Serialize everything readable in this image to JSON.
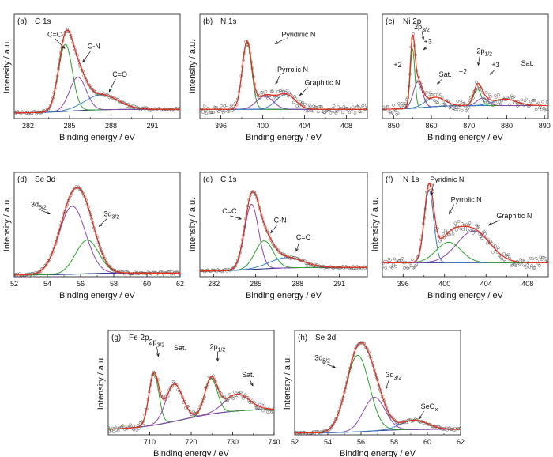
{
  "chart_data": [
    {
      "tag": "(a)",
      "title": "C 1s",
      "type": "line",
      "xlabel": "Binding energy / eV",
      "ylabel": "Intensity / a.u.",
      "xlim": [
        281,
        293
      ],
      "ylim": [
        0,
        1.12
      ],
      "xticks": [
        "282",
        "285",
        "288",
        "291"
      ],
      "xtick_values": [
        282,
        285,
        288,
        291
      ],
      "noise": 0.015,
      "peaks": [
        {
          "center": 284.7,
          "amp": 0.72,
          "width": 0.5,
          "color": "#2ca02c"
        },
        {
          "center": 285.6,
          "amp": 0.36,
          "width": 0.6,
          "color": "#8e44ad"
        },
        {
          "center": 287.3,
          "amp": 0.16,
          "width": 1.2,
          "color": "#3a7fc1"
        }
      ],
      "bg": {
        "type": "step",
        "low": 0.06,
        "high": 0.1,
        "center": 285.0,
        "width": 1.2
      },
      "annotations": [
        {
          "text": "C=C",
          "sub": "",
          "x": 283.4,
          "y": 0.88
        },
        {
          "text": "C-N",
          "sub": "",
          "x": 286.3,
          "y": 0.75
        },
        {
          "text": "C=O",
          "sub": "",
          "x": 288.1,
          "y": 0.45
        }
      ]
    },
    {
      "tag": "(b)",
      "title": "N 1s",
      "type": "line",
      "xlabel": "Binding energy / eV",
      "ylabel": "Intensity / a.u.",
      "xlim": [
        394,
        410
      ],
      "ylim": [
        0,
        1.12
      ],
      "xticks": [
        "396",
        "400",
        "404",
        "408"
      ],
      "xtick_values": [
        396,
        400,
        404,
        408
      ],
      "noise": 0.045,
      "peaks": [
        {
          "center": 398.5,
          "amp": 0.72,
          "width": 0.45,
          "color": "#2ca02c"
        },
        {
          "center": 400.2,
          "amp": 0.14,
          "width": 0.8,
          "color": "#8e44ad"
        },
        {
          "center": 402.2,
          "amp": 0.16,
          "width": 0.9,
          "color": "#3a7fc1"
        }
      ],
      "bg": {
        "type": "flat",
        "low": 0.1,
        "high": 0.1,
        "center": 398.5,
        "width": 1.0
      },
      "annotations": [
        {
          "text": "Pyridinic N",
          "sub": "",
          "x": 401.8,
          "y": 0.88
        },
        {
          "text": "Pyrrolic N",
          "sub": "",
          "x": 401.4,
          "y": 0.5
        },
        {
          "text": "Graphitic N",
          "sub": "",
          "x": 404.0,
          "y": 0.36
        }
      ]
    },
    {
      "tag": "(c)",
      "title": "Ni 2p",
      "type": "line",
      "xlabel": "Binding energy / eV",
      "ylabel": "",
      "xlim": [
        847,
        891
      ],
      "ylim": [
        0,
        1.12
      ],
      "xticks": [
        "850",
        "860",
        "870",
        "880",
        "890"
      ],
      "xtick_values": [
        850,
        860,
        870,
        880,
        890
      ],
      "noise": 0.06,
      "peaks": [
        {
          "center": 855.0,
          "amp": 0.64,
          "width": 0.6,
          "color": "#2ca02c"
        },
        {
          "center": 856.4,
          "amp": 0.28,
          "width": 1.2,
          "color": "#8e44ad"
        },
        {
          "center": 861.0,
          "amp": 0.1,
          "width": 2.5,
          "color": "#3a7fc1"
        },
        {
          "center": 872.2,
          "amp": 0.18,
          "width": 1.0,
          "color": "#2ca02c"
        },
        {
          "center": 873.6,
          "amp": 0.08,
          "width": 1.5,
          "color": "#8e44ad"
        },
        {
          "center": 879.5,
          "amp": 0.07,
          "width": 3.0,
          "color": "#3a7fc1"
        }
      ],
      "bg": {
        "type": "step",
        "low": 0.1,
        "high": 0.14,
        "center": 858.0,
        "width": 3.0
      },
      "annotations": [
        {
          "text": "2p",
          "sub": "3/2",
          "x": 855.4,
          "y": 0.96
        },
        {
          "text": "+3",
          "sub": "",
          "x": 858.0,
          "y": 0.8
        },
        {
          "text": "+2",
          "sub": "",
          "x": 850.0,
          "y": 0.55
        },
        {
          "text": "Sat.",
          "sub": "",
          "x": 862.0,
          "y": 0.45
        },
        {
          "text": "+2",
          "sub": "",
          "x": 867.3,
          "y": 0.48
        },
        {
          "text": "2p",
          "sub": "1/2",
          "x": 872.0,
          "y": 0.7
        },
        {
          "text": "+3",
          "sub": "",
          "x": 876.0,
          "y": 0.55
        },
        {
          "text": "Sat.",
          "sub": "",
          "x": 883.8,
          "y": 0.57
        }
      ]
    },
    {
      "tag": "(d)",
      "title": "Se 3d",
      "type": "line",
      "xlabel": "Binding energy / eV",
      "ylabel": "Intensity / a.u.",
      "xlim": [
        52,
        62
      ],
      "ylim": [
        0,
        1.12
      ],
      "xticks": [
        "52",
        "54",
        "56",
        "58",
        "60",
        "62"
      ],
      "xtick_values": [
        52,
        54,
        56,
        58,
        60,
        62
      ],
      "noise": 0.012,
      "peaks": [
        {
          "center": 55.5,
          "amp": 0.73,
          "width": 0.8,
          "color": "#8e44ad"
        },
        {
          "center": 56.4,
          "amp": 0.36,
          "width": 0.7,
          "color": "#2ca02c"
        }
      ],
      "bg": {
        "type": "step",
        "low": 0.02,
        "high": 0.04,
        "center": 56.0,
        "width": 0.8
      },
      "annotations": [
        {
          "text": "3d",
          "sub": "5/2",
          "x": 53.0,
          "y": 0.75
        },
        {
          "text": "3d",
          "sub": "3/2",
          "x": 57.4,
          "y": 0.65
        }
      ]
    },
    {
      "tag": "(e)",
      "title": "C 1s",
      "type": "line",
      "xlabel": "Binding energy / eV",
      "ylabel": "Intensity / a.u.",
      "xlim": [
        281,
        293
      ],
      "ylim": [
        0,
        1.12
      ],
      "xticks": [
        "282",
        "285",
        "288",
        "291"
      ],
      "xtick_values": [
        282,
        285,
        288,
        291
      ],
      "noise": 0.012,
      "peaks": [
        {
          "center": 284.7,
          "amp": 0.7,
          "width": 0.5,
          "color": "#8e44ad"
        },
        {
          "center": 285.6,
          "amp": 0.3,
          "width": 0.65,
          "color": "#2ca02c"
        },
        {
          "center": 287.2,
          "amp": 0.11,
          "width": 1.2,
          "color": "#3a7fc1"
        }
      ],
      "bg": {
        "type": "step",
        "low": 0.06,
        "high": 0.1,
        "center": 285.0,
        "width": 1.2
      },
      "annotations": [
        {
          "text": "C=C",
          "sub": "",
          "x": 282.6,
          "y": 0.68
        },
        {
          "text": "C-N",
          "sub": "",
          "x": 286.3,
          "y": 0.58
        },
        {
          "text": "C=O",
          "sub": "",
          "x": 287.9,
          "y": 0.4
        }
      ]
    },
    {
      "tag": "(f)",
      "title": "N 1s",
      "type": "line",
      "xlabel": "Binding energy / eV",
      "ylabel": "Intensity / a.u.",
      "xlim": [
        394,
        410
      ],
      "ylim": [
        0,
        1.12
      ],
      "xticks": [
        "396",
        "400",
        "404",
        "408"
      ],
      "xtick_values": [
        396,
        400,
        404,
        408
      ],
      "noise": 0.06,
      "peaks": [
        {
          "center": 398.5,
          "amp": 0.78,
          "width": 0.45,
          "color": "#3a7fc1"
        },
        {
          "center": 400.4,
          "amp": 0.22,
          "width": 1.2,
          "color": "#2ca02c"
        },
        {
          "center": 402.8,
          "amp": 0.34,
          "width": 1.6,
          "color": "#8e44ad"
        }
      ],
      "bg": {
        "type": "flat",
        "low": 0.15,
        "high": 0.15,
        "center": 398.5,
        "width": 1.0
      },
      "annotations": [
        {
          "text": "Pyridinic N",
          "sub": "",
          "x": 398.6,
          "y": 1.02
        },
        {
          "text": "Pyrrolic N",
          "sub": "",
          "x": 400.6,
          "y": 0.8
        },
        {
          "text": "Graphitic N",
          "sub": "",
          "x": 405.0,
          "y": 0.63
        }
      ]
    },
    {
      "tag": "(g)",
      "title": "Fe 2p",
      "type": "line",
      "xlabel": "Binding energy / eV",
      "ylabel": "Intensity / a.u.",
      "xlim": [
        700,
        740
      ],
      "ylim": [
        0,
        1.12
      ],
      "xticks": [
        "710",
        "720",
        "730",
        "740"
      ],
      "xtick_values": [
        710,
        720,
        730,
        740
      ],
      "noise": 0.035,
      "peaks": [
        {
          "center": 711.0,
          "amp": 0.55,
          "width": 1.2,
          "color": "#2ca02c"
        },
        {
          "center": 715.9,
          "amp": 0.4,
          "width": 2.0,
          "color": "#8e44ad"
        },
        {
          "center": 724.8,
          "amp": 0.38,
          "width": 1.5,
          "color": "#2ca02c"
        },
        {
          "center": 731.0,
          "amp": 0.18,
          "width": 3.0,
          "color": "#8e44ad"
        }
      ],
      "bg": {
        "type": "step",
        "low": 0.05,
        "high": 0.28,
        "center": 718.0,
        "width": 6.0
      },
      "annotations": [
        {
          "text": "2p",
          "sub": "3/2",
          "x": 709.8,
          "y": 0.97
        },
        {
          "text": "Sat.",
          "sub": "",
          "x": 715.8,
          "y": 0.91
        },
        {
          "text": "2p",
          "sub": "1/2",
          "x": 724.5,
          "y": 0.92
        },
        {
          "text": "Sat.",
          "sub": "",
          "x": 732.2,
          "y": 0.62
        }
      ]
    },
    {
      "tag": "(h)",
      "title": "Se 3d",
      "type": "line",
      "xlabel": "Binding energy / eV",
      "ylabel": "Intensity / a.u.",
      "xlim": [
        52,
        62
      ],
      "ylim": [
        0,
        1.12
      ],
      "xticks": [
        "52",
        "54",
        "56",
        "58",
        "60",
        "62"
      ],
      "xtick_values": [
        52,
        54,
        56,
        58,
        60,
        62
      ],
      "noise": 0.012,
      "peaks": [
        {
          "center": 55.8,
          "amp": 0.82,
          "width": 0.7,
          "color": "#2ca02c"
        },
        {
          "center": 56.8,
          "amp": 0.36,
          "width": 0.65,
          "color": "#8e44ad"
        },
        {
          "center": 59.2,
          "amp": 0.1,
          "width": 0.8,
          "color": "#3a7fc1"
        }
      ],
      "bg": {
        "type": "step",
        "low": 0.02,
        "high": 0.06,
        "center": 56.5,
        "width": 1.0
      },
      "annotations": [
        {
          "text": "3d",
          "sub": "5/2",
          "x": 53.2,
          "y": 0.8
        },
        {
          "text": "3d",
          "sub": "3/2",
          "x": 57.5,
          "y": 0.62
        },
        {
          "text": "SeO",
          "sub": "x",
          "x": 59.6,
          "y": 0.28
        }
      ]
    }
  ]
}
